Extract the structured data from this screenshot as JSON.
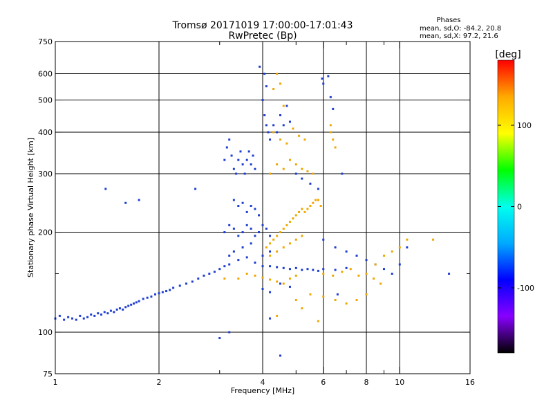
{
  "chart_data": {
    "type": "scatter",
    "title": "Tromsø 20171019 17:00:00-17:01:43",
    "subtitle": "RwPretec (Bp)",
    "xlabel": "Frequency [MHz]",
    "ylabel": "Stationary phase Virtual Height [km]",
    "x_scale": "log",
    "y_scale": "log",
    "xlim": [
      1,
      16
    ],
    "ylim": [
      75,
      750
    ],
    "x_ticks": [
      1,
      2,
      4,
      6,
      8,
      10,
      16
    ],
    "x_tick_labels": [
      "1",
      "2",
      "4",
      "6",
      "8",
      "10",
      "16"
    ],
    "x_minor": [
      3,
      5,
      7,
      9
    ],
    "y_ticks": [
      75,
      100,
      200,
      300,
      400,
      500,
      600,
      750
    ],
    "y_tick_labels": [
      "75",
      "100",
      "200",
      "300",
      "400",
      "500",
      "600",
      "750"
    ],
    "y_minor": [
      150
    ],
    "grid": true,
    "phase_info": {
      "header": "Phases",
      "line_o": "mean, sd,O: -84.2, 20.8",
      "line_x": "mean, sd,X:  97.2, 21.6"
    },
    "colorbar": {
      "label": "[deg]",
      "range": [
        -180,
        180
      ],
      "ticks": [
        100,
        0,
        -100
      ],
      "tick_labels": [
        "100",
        "0",
        "-100"
      ],
      "colors": [
        "#000000",
        "#8800ff",
        "#0000ff",
        "#00aaff",
        "#00ffee",
        "#00ff00",
        "#ffff00",
        "#ffaa00",
        "#ff0000"
      ]
    },
    "series": [
      {
        "component": "O",
        "color": "#1f3fd0",
        "points": [
          [
            1.0,
            110
          ],
          [
            1.03,
            112
          ],
          [
            1.06,
            109
          ],
          [
            1.09,
            111
          ],
          [
            1.12,
            110
          ],
          [
            1.15,
            109
          ],
          [
            1.18,
            112
          ],
          [
            1.21,
            110
          ],
          [
            1.24,
            111
          ],
          [
            1.27,
            113
          ],
          [
            1.3,
            112
          ],
          [
            1.33,
            114
          ],
          [
            1.36,
            113
          ],
          [
            1.39,
            115
          ],
          [
            1.42,
            114
          ],
          [
            1.45,
            116
          ],
          [
            1.48,
            115
          ],
          [
            1.51,
            117
          ],
          [
            1.54,
            118
          ],
          [
            1.57,
            117
          ],
          [
            1.6,
            119
          ],
          [
            1.63,
            120
          ],
          [
            1.66,
            121
          ],
          [
            1.69,
            122
          ],
          [
            1.72,
            123
          ],
          [
            1.75,
            124
          ],
          [
            1.8,
            126
          ],
          [
            1.85,
            127
          ],
          [
            1.9,
            128
          ],
          [
            1.95,
            130
          ],
          [
            2.0,
            131
          ],
          [
            2.05,
            132
          ],
          [
            2.1,
            133
          ],
          [
            2.15,
            134
          ],
          [
            2.2,
            136
          ],
          [
            2.3,
            138
          ],
          [
            2.4,
            140
          ],
          [
            2.5,
            142
          ],
          [
            2.6,
            145
          ],
          [
            2.7,
            148
          ],
          [
            2.8,
            150
          ],
          [
            2.9,
            152
          ],
          [
            3.0,
            155
          ],
          [
            3.1,
            158
          ],
          [
            3.2,
            160
          ],
          [
            1.4,
            270
          ],
          [
            1.6,
            245
          ],
          [
            1.75,
            250
          ],
          [
            2.55,
            270
          ],
          [
            3.1,
            330
          ],
          [
            3.15,
            360
          ],
          [
            3.2,
            380
          ],
          [
            3.25,
            340
          ],
          [
            3.3,
            310
          ],
          [
            3.35,
            300
          ],
          [
            3.4,
            330
          ],
          [
            3.45,
            350
          ],
          [
            3.5,
            320
          ],
          [
            3.55,
            300
          ],
          [
            3.6,
            330
          ],
          [
            3.65,
            350
          ],
          [
            3.7,
            320
          ],
          [
            3.75,
            340
          ],
          [
            3.8,
            310
          ],
          [
            3.3,
            250
          ],
          [
            3.4,
            240
          ],
          [
            3.5,
            245
          ],
          [
            3.6,
            230
          ],
          [
            3.7,
            240
          ],
          [
            3.8,
            235
          ],
          [
            3.9,
            225
          ],
          [
            3.1,
            200
          ],
          [
            3.2,
            210
          ],
          [
            3.3,
            205
          ],
          [
            3.4,
            195
          ],
          [
            3.5,
            200
          ],
          [
            3.6,
            210
          ],
          [
            3.7,
            205
          ],
          [
            3.8,
            195
          ],
          [
            3.9,
            200
          ],
          [
            4.0,
            210
          ],
          [
            4.1,
            205
          ],
          [
            4.2,
            195
          ],
          [
            3.2,
            170
          ],
          [
            3.4,
            165
          ],
          [
            3.6,
            168
          ],
          [
            3.8,
            162
          ],
          [
            4.0,
            170
          ],
          [
            4.2,
            175
          ],
          [
            3.3,
            175
          ],
          [
            3.5,
            180
          ],
          [
            3.7,
            185
          ],
          [
            4.0,
            500
          ],
          [
            4.05,
            450
          ],
          [
            4.1,
            420
          ],
          [
            4.15,
            400
          ],
          [
            4.2,
            380
          ],
          [
            4.1,
            550
          ],
          [
            4.05,
            600
          ],
          [
            3.92,
            630
          ],
          [
            4.3,
            420
          ],
          [
            4.4,
            400
          ],
          [
            4.5,
            450
          ],
          [
            4.6,
            420
          ],
          [
            4.7,
            480
          ],
          [
            4.8,
            430
          ],
          [
            4.0,
            135
          ],
          [
            4.2,
            132
          ],
          [
            4.5,
            140
          ],
          [
            4.8,
            137
          ],
          [
            4.0,
            158
          ],
          [
            4.2,
            158
          ],
          [
            4.4,
            157
          ],
          [
            4.6,
            156
          ],
          [
            4.8,
            155
          ],
          [
            5.0,
            156
          ],
          [
            5.2,
            154
          ],
          [
            5.4,
            155
          ],
          [
            5.6,
            154
          ],
          [
            5.8,
            153
          ],
          [
            6.0,
            155
          ],
          [
            6.5,
            154
          ],
          [
            7.0,
            156
          ],
          [
            5.95,
            580
          ],
          [
            6.0,
            560
          ],
          [
            6.2,
            590
          ],
          [
            6.3,
            510
          ],
          [
            6.4,
            470
          ],
          [
            5.0,
            300
          ],
          [
            5.2,
            290
          ],
          [
            5.5,
            280
          ],
          [
            5.8,
            270
          ],
          [
            6.8,
            300
          ],
          [
            3.0,
            96
          ],
          [
            3.2,
            100
          ],
          [
            4.2,
            110
          ],
          [
            4.5,
            85
          ],
          [
            6.0,
            190
          ],
          [
            6.5,
            180
          ],
          [
            7.0,
            175
          ],
          [
            7.5,
            170
          ],
          [
            8.0,
            165
          ],
          [
            8.5,
            160
          ],
          [
            9.0,
            155
          ],
          [
            9.5,
            150
          ],
          [
            10.0,
            160
          ],
          [
            10.5,
            180
          ],
          [
            13.9,
            150
          ],
          [
            6.6,
            130
          ]
        ]
      },
      {
        "component": "X",
        "color": "#f0a800",
        "points": [
          [
            3.1,
            145
          ],
          [
            3.4,
            145
          ],
          [
            3.6,
            150
          ],
          [
            3.8,
            148
          ],
          [
            4.0,
            146
          ],
          [
            4.2,
            144
          ],
          [
            4.4,
            142
          ],
          [
            4.6,
            140
          ],
          [
            4.8,
            145
          ],
          [
            5.0,
            148
          ],
          [
            4.1,
            180
          ],
          [
            4.2,
            185
          ],
          [
            4.3,
            190
          ],
          [
            4.4,
            195
          ],
          [
            4.5,
            200
          ],
          [
            4.6,
            205
          ],
          [
            4.7,
            210
          ],
          [
            4.8,
            215
          ],
          [
            4.9,
            220
          ],
          [
            5.0,
            225
          ],
          [
            5.1,
            230
          ],
          [
            5.2,
            235
          ],
          [
            5.3,
            230
          ],
          [
            5.4,
            235
          ],
          [
            5.5,
            240
          ],
          [
            5.6,
            245
          ],
          [
            5.7,
            250
          ],
          [
            5.8,
            250
          ],
          [
            5.9,
            240
          ],
          [
            4.2,
            170
          ],
          [
            4.4,
            175
          ],
          [
            4.6,
            180
          ],
          [
            4.8,
            185
          ],
          [
            5.0,
            190
          ],
          [
            5.2,
            195
          ],
          [
            4.2,
            300
          ],
          [
            4.4,
            320
          ],
          [
            4.6,
            310
          ],
          [
            4.8,
            330
          ],
          [
            5.0,
            320
          ],
          [
            5.2,
            310
          ],
          [
            5.4,
            305
          ],
          [
            5.6,
            300
          ],
          [
            4.3,
            400
          ],
          [
            4.5,
            380
          ],
          [
            4.7,
            370
          ],
          [
            4.9,
            410
          ],
          [
            5.1,
            390
          ],
          [
            5.3,
            380
          ],
          [
            4.3,
            540
          ],
          [
            4.4,
            600
          ],
          [
            4.5,
            560
          ],
          [
            4.6,
            480
          ],
          [
            6.3,
            400
          ],
          [
            6.4,
            380
          ],
          [
            6.5,
            360
          ],
          [
            6.3,
            420
          ],
          [
            6.0,
            150
          ],
          [
            6.4,
            148
          ],
          [
            6.8,
            152
          ],
          [
            7.2,
            155
          ],
          [
            7.6,
            148
          ],
          [
            8.0,
            150
          ],
          [
            8.4,
            145
          ],
          [
            8.8,
            140
          ],
          [
            5.0,
            125
          ],
          [
            5.5,
            130
          ],
          [
            6.0,
            128
          ],
          [
            6.5,
            125
          ],
          [
            7.0,
            122
          ],
          [
            7.5,
            125
          ],
          [
            8.0,
            130
          ],
          [
            4.4,
            112
          ],
          [
            5.2,
            118
          ],
          [
            5.8,
            108
          ],
          [
            8.5,
            160
          ],
          [
            9.0,
            170
          ],
          [
            9.5,
            175
          ],
          [
            10.0,
            180
          ],
          [
            10.5,
            190
          ],
          [
            12.5,
            190
          ]
        ]
      }
    ]
  }
}
